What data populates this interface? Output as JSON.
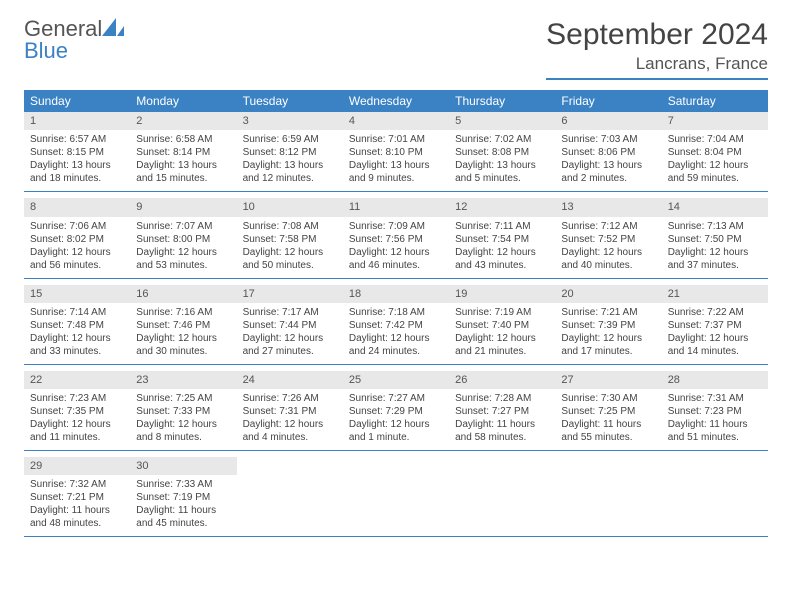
{
  "logo": {
    "text1": "General",
    "text2": "Blue"
  },
  "title": "September 2024",
  "location": "Lancrans, France",
  "colors": {
    "accent": "#3b82c4",
    "header_bg": "#3b82c4",
    "header_text": "#ffffff",
    "daynum_bg": "#e8e8e8",
    "body_text": "#444444",
    "page_bg": "#ffffff"
  },
  "weekdays": [
    "Sunday",
    "Monday",
    "Tuesday",
    "Wednesday",
    "Thursday",
    "Friday",
    "Saturday"
  ],
  "weeks": [
    [
      {
        "n": "1",
        "sunrise": "Sunrise: 6:57 AM",
        "sunset": "Sunset: 8:15 PM",
        "d1": "Daylight: 13 hours",
        "d2": "and 18 minutes."
      },
      {
        "n": "2",
        "sunrise": "Sunrise: 6:58 AM",
        "sunset": "Sunset: 8:14 PM",
        "d1": "Daylight: 13 hours",
        "d2": "and 15 minutes."
      },
      {
        "n": "3",
        "sunrise": "Sunrise: 6:59 AM",
        "sunset": "Sunset: 8:12 PM",
        "d1": "Daylight: 13 hours",
        "d2": "and 12 minutes."
      },
      {
        "n": "4",
        "sunrise": "Sunrise: 7:01 AM",
        "sunset": "Sunset: 8:10 PM",
        "d1": "Daylight: 13 hours",
        "d2": "and 9 minutes."
      },
      {
        "n": "5",
        "sunrise": "Sunrise: 7:02 AM",
        "sunset": "Sunset: 8:08 PM",
        "d1": "Daylight: 13 hours",
        "d2": "and 5 minutes."
      },
      {
        "n": "6",
        "sunrise": "Sunrise: 7:03 AM",
        "sunset": "Sunset: 8:06 PM",
        "d1": "Daylight: 13 hours",
        "d2": "and 2 minutes."
      },
      {
        "n": "7",
        "sunrise": "Sunrise: 7:04 AM",
        "sunset": "Sunset: 8:04 PM",
        "d1": "Daylight: 12 hours",
        "d2": "and 59 minutes."
      }
    ],
    [
      {
        "n": "8",
        "sunrise": "Sunrise: 7:06 AM",
        "sunset": "Sunset: 8:02 PM",
        "d1": "Daylight: 12 hours",
        "d2": "and 56 minutes."
      },
      {
        "n": "9",
        "sunrise": "Sunrise: 7:07 AM",
        "sunset": "Sunset: 8:00 PM",
        "d1": "Daylight: 12 hours",
        "d2": "and 53 minutes."
      },
      {
        "n": "10",
        "sunrise": "Sunrise: 7:08 AM",
        "sunset": "Sunset: 7:58 PM",
        "d1": "Daylight: 12 hours",
        "d2": "and 50 minutes."
      },
      {
        "n": "11",
        "sunrise": "Sunrise: 7:09 AM",
        "sunset": "Sunset: 7:56 PM",
        "d1": "Daylight: 12 hours",
        "d2": "and 46 minutes."
      },
      {
        "n": "12",
        "sunrise": "Sunrise: 7:11 AM",
        "sunset": "Sunset: 7:54 PM",
        "d1": "Daylight: 12 hours",
        "d2": "and 43 minutes."
      },
      {
        "n": "13",
        "sunrise": "Sunrise: 7:12 AM",
        "sunset": "Sunset: 7:52 PM",
        "d1": "Daylight: 12 hours",
        "d2": "and 40 minutes."
      },
      {
        "n": "14",
        "sunrise": "Sunrise: 7:13 AM",
        "sunset": "Sunset: 7:50 PM",
        "d1": "Daylight: 12 hours",
        "d2": "and 37 minutes."
      }
    ],
    [
      {
        "n": "15",
        "sunrise": "Sunrise: 7:14 AM",
        "sunset": "Sunset: 7:48 PM",
        "d1": "Daylight: 12 hours",
        "d2": "and 33 minutes."
      },
      {
        "n": "16",
        "sunrise": "Sunrise: 7:16 AM",
        "sunset": "Sunset: 7:46 PM",
        "d1": "Daylight: 12 hours",
        "d2": "and 30 minutes."
      },
      {
        "n": "17",
        "sunrise": "Sunrise: 7:17 AM",
        "sunset": "Sunset: 7:44 PM",
        "d1": "Daylight: 12 hours",
        "d2": "and 27 minutes."
      },
      {
        "n": "18",
        "sunrise": "Sunrise: 7:18 AM",
        "sunset": "Sunset: 7:42 PM",
        "d1": "Daylight: 12 hours",
        "d2": "and 24 minutes."
      },
      {
        "n": "19",
        "sunrise": "Sunrise: 7:19 AM",
        "sunset": "Sunset: 7:40 PM",
        "d1": "Daylight: 12 hours",
        "d2": "and 21 minutes."
      },
      {
        "n": "20",
        "sunrise": "Sunrise: 7:21 AM",
        "sunset": "Sunset: 7:39 PM",
        "d1": "Daylight: 12 hours",
        "d2": "and 17 minutes."
      },
      {
        "n": "21",
        "sunrise": "Sunrise: 7:22 AM",
        "sunset": "Sunset: 7:37 PM",
        "d1": "Daylight: 12 hours",
        "d2": "and 14 minutes."
      }
    ],
    [
      {
        "n": "22",
        "sunrise": "Sunrise: 7:23 AM",
        "sunset": "Sunset: 7:35 PM",
        "d1": "Daylight: 12 hours",
        "d2": "and 11 minutes."
      },
      {
        "n": "23",
        "sunrise": "Sunrise: 7:25 AM",
        "sunset": "Sunset: 7:33 PM",
        "d1": "Daylight: 12 hours",
        "d2": "and 8 minutes."
      },
      {
        "n": "24",
        "sunrise": "Sunrise: 7:26 AM",
        "sunset": "Sunset: 7:31 PM",
        "d1": "Daylight: 12 hours",
        "d2": "and 4 minutes."
      },
      {
        "n": "25",
        "sunrise": "Sunrise: 7:27 AM",
        "sunset": "Sunset: 7:29 PM",
        "d1": "Daylight: 12 hours",
        "d2": "and 1 minute."
      },
      {
        "n": "26",
        "sunrise": "Sunrise: 7:28 AM",
        "sunset": "Sunset: 7:27 PM",
        "d1": "Daylight: 11 hours",
        "d2": "and 58 minutes."
      },
      {
        "n": "27",
        "sunrise": "Sunrise: 7:30 AM",
        "sunset": "Sunset: 7:25 PM",
        "d1": "Daylight: 11 hours",
        "d2": "and 55 minutes."
      },
      {
        "n": "28",
        "sunrise": "Sunrise: 7:31 AM",
        "sunset": "Sunset: 7:23 PM",
        "d1": "Daylight: 11 hours",
        "d2": "and 51 minutes."
      }
    ],
    [
      {
        "n": "29",
        "sunrise": "Sunrise: 7:32 AM",
        "sunset": "Sunset: 7:21 PM",
        "d1": "Daylight: 11 hours",
        "d2": "and 48 minutes."
      },
      {
        "n": "30",
        "sunrise": "Sunrise: 7:33 AM",
        "sunset": "Sunset: 7:19 PM",
        "d1": "Daylight: 11 hours",
        "d2": "and 45 minutes."
      },
      null,
      null,
      null,
      null,
      null
    ]
  ]
}
